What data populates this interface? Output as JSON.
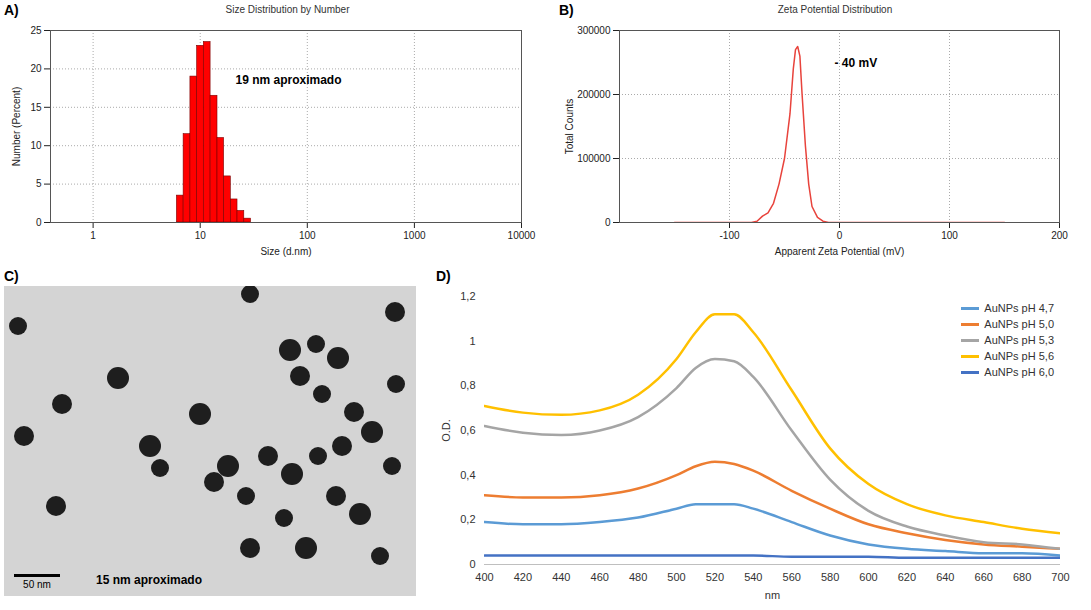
{
  "chart_data": [
    {
      "panel": "A)",
      "type": "histogram",
      "title": "Size Distribution by Number",
      "x_label": "Size (d.nm)",
      "y_label": "Number (Percent)",
      "bins": [
        6.06,
        7.0,
        8.1,
        9.36,
        10.8,
        12.5,
        14.5,
        16.7,
        19.3,
        22.3,
        25.8,
        29.8
      ],
      "values": [
        3.5,
        11.5,
        19,
        23,
        23.5,
        16.5,
        11,
        6,
        3,
        1.5,
        0.5
      ],
      "color": "#ff0000",
      "log": "x",
      "xlim": [
        0.4,
        10000
      ],
      "xticks": [
        1,
        10,
        100,
        1000,
        10000
      ],
      "ylim": [
        0,
        25
      ],
      "yticks": [
        0,
        5,
        10,
        15,
        20,
        25
      ],
      "grid": true,
      "annotations": [
        "19 nm aproximado"
      ]
    },
    {
      "panel": "B)",
      "type": "line",
      "title": "Zeta Potential Distribution",
      "x_label": "Apparent Zeta Potential (mV)",
      "y_label": "Total Counts",
      "x": [
        -150,
        -80,
        -75,
        -70,
        -65,
        -60,
        -55,
        -50,
        -45,
        -42,
        -40,
        -38,
        -36,
        -34,
        -31,
        -28,
        -25,
        -20,
        -15,
        -10,
        150
      ],
      "values": [
        0,
        0,
        2000,
        10000,
        15000,
        30000,
        60000,
        100000,
        170000,
        240000,
        270000,
        275000,
        260000,
        200000,
        120000,
        60000,
        25000,
        8000,
        2000,
        0,
        0
      ],
      "color": "#e8433c",
      "xlim": [
        -200,
        200
      ],
      "xticks": [
        -100,
        0,
        100,
        200
      ],
      "ylim": [
        0,
        300000
      ],
      "yticks": [
        0,
        100000,
        200000,
        300000
      ],
      "grid": true,
      "annotations": [
        "- 40 mV"
      ]
    },
    {
      "panel": "D)",
      "type": "line",
      "x_label": "nm",
      "y_label": "O.D.",
      "x": [
        400,
        420,
        440,
        460,
        480,
        500,
        510,
        520,
        530,
        540,
        560,
        580,
        600,
        620,
        640,
        660,
        680,
        700
      ],
      "series": [
        {
          "name": "AuNPs pH 4,7",
          "color": "#5b9bd5",
          "values": [
            0.19,
            0.18,
            0.18,
            0.19,
            0.21,
            0.25,
            0.27,
            0.27,
            0.27,
            0.25,
            0.19,
            0.13,
            0.09,
            0.07,
            0.06,
            0.05,
            0.05,
            0.04
          ]
        },
        {
          "name": "AuNPs pH 5,0",
          "color": "#ed7d31",
          "values": [
            0.31,
            0.3,
            0.3,
            0.31,
            0.34,
            0.4,
            0.44,
            0.46,
            0.45,
            0.42,
            0.33,
            0.25,
            0.18,
            0.14,
            0.11,
            0.09,
            0.08,
            0.07
          ]
        },
        {
          "name": "AuNPs pH 5,3",
          "color": "#a5a5a5",
          "values": [
            0.62,
            0.59,
            0.58,
            0.6,
            0.66,
            0.79,
            0.88,
            0.92,
            0.91,
            0.84,
            0.6,
            0.38,
            0.24,
            0.17,
            0.13,
            0.1,
            0.09,
            0.07
          ]
        },
        {
          "name": "AuNPs pH 5,6",
          "color": "#ffc000",
          "values": [
            0.71,
            0.68,
            0.67,
            0.69,
            0.76,
            0.92,
            1.04,
            1.12,
            1.12,
            1.04,
            0.78,
            0.52,
            0.36,
            0.27,
            0.22,
            0.19,
            0.16,
            0.14
          ]
        },
        {
          "name": "AuNPs pH 6,0",
          "color": "#4472c4",
          "values": [
            0.04,
            0.04,
            0.04,
            0.04,
            0.04,
            0.04,
            0.04,
            0.04,
            0.04,
            0.04,
            0.035,
            0.035,
            0.035,
            0.03,
            0.03,
            0.03,
            0.03,
            0.03
          ]
        }
      ],
      "xlim": [
        400,
        700
      ],
      "xticks": [
        400,
        420,
        440,
        460,
        480,
        500,
        520,
        540,
        560,
        580,
        600,
        620,
        640,
        660,
        680,
        700
      ],
      "ylim": [
        0,
        1.2
      ],
      "yticks": [
        0,
        {
          "value": 0.2,
          "label": "0,2"
        },
        {
          "value": 0.4,
          "label": "0,4"
        },
        {
          "value": 0.6,
          "label": "0,6"
        },
        {
          "value": 0.8,
          "label": "0,8"
        },
        1,
        {
          "value": 1.2,
          "label": "1,2"
        }
      ],
      "grid": false,
      "legend": "top-right"
    }
  ],
  "image_panel": {
    "panel": "C)",
    "scale_bar": "50 nm",
    "annotation": "15 nm aproximado"
  }
}
